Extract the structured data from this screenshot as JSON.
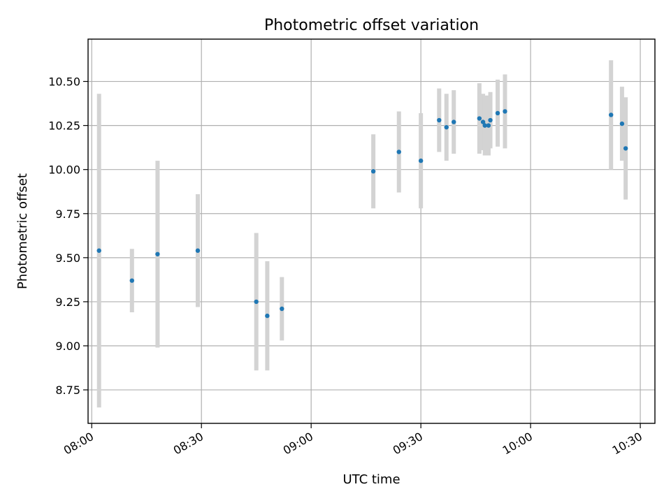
{
  "chart_data": {
    "type": "scatter",
    "title": "Photometric offset variation",
    "xlabel": "UTC time",
    "ylabel": "Photometric offset",
    "x_axis_type": "time",
    "xlim": [
      "07:59",
      "10:34"
    ],
    "ylim": [
      8.56,
      10.74
    ],
    "grid": true,
    "x_ticks": [
      "08:00",
      "08:30",
      "09:00",
      "09:30",
      "10:00",
      "10:30"
    ],
    "y_ticks": [
      8.75,
      9.0,
      9.25,
      9.5,
      9.75,
      10.0,
      10.25,
      10.5
    ],
    "y_tick_labels": [
      "8.75",
      "9.00",
      "9.25",
      "9.50",
      "9.75",
      "10.00",
      "10.25",
      "10.50"
    ],
    "colors": {
      "point": "#1f77b4",
      "errorbar": "#d3d3d3"
    },
    "points": [
      {
        "x": "08:02",
        "y": 9.54,
        "yerr": 0.89
      },
      {
        "x": "08:11",
        "y": 9.37,
        "yerr": 0.18
      },
      {
        "x": "08:18",
        "y": 9.52,
        "yerr": 0.53
      },
      {
        "x": "08:29",
        "y": 9.54,
        "yerr": 0.32
      },
      {
        "x": "08:45",
        "y": 9.25,
        "yerr": 0.39
      },
      {
        "x": "08:48",
        "y": 9.17,
        "yerr": 0.31
      },
      {
        "x": "08:52",
        "y": 9.21,
        "yerr": 0.18
      },
      {
        "x": "09:17",
        "y": 9.99,
        "yerr": 0.21
      },
      {
        "x": "09:24",
        "y": 10.1,
        "yerr": 0.23
      },
      {
        "x": "09:30",
        "y": 10.05,
        "yerr": 0.27
      },
      {
        "x": "09:35",
        "y": 10.28,
        "yerr": 0.18
      },
      {
        "x": "09:37",
        "y": 10.24,
        "yerr": 0.19
      },
      {
        "x": "09:39",
        "y": 10.27,
        "yerr": 0.18
      },
      {
        "x": "09:46",
        "y": 10.29,
        "yerr": 0.2
      },
      {
        "x": "09:47",
        "y": 10.27,
        "yerr": 0.16
      },
      {
        "x": "09:47:30",
        "y": 10.25,
        "yerr": 0.17
      },
      {
        "x": "09:48:30",
        "y": 10.25,
        "yerr": 0.17
      },
      {
        "x": "09:49",
        "y": 10.28,
        "yerr": 0.16
      },
      {
        "x": "09:51",
        "y": 10.32,
        "yerr": 0.19
      },
      {
        "x": "09:53",
        "y": 10.33,
        "yerr": 0.21
      },
      {
        "x": "10:22",
        "y": 10.31,
        "yerr": 0.31
      },
      {
        "x": "10:25",
        "y": 10.26,
        "yerr": 0.21
      },
      {
        "x": "10:26",
        "y": 10.12,
        "yerr": 0.29
      }
    ]
  }
}
